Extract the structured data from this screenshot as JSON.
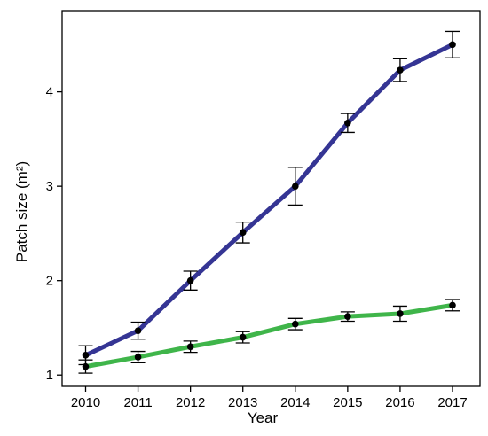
{
  "chart_data": {
    "type": "line",
    "xlabel": "Year",
    "ylabel": "Patch size (m²)",
    "x": [
      "2010",
      "2011",
      "2012",
      "2013",
      "2014",
      "2015",
      "2016",
      "2017"
    ],
    "ylim": [
      0.88,
      4.86
    ],
    "yticks": [
      "1",
      "2",
      "3",
      "4"
    ],
    "grid": false,
    "series": [
      {
        "color": "#353594",
        "values": [
          1.21,
          1.47,
          2.0,
          2.51,
          3.0,
          3.67,
          4.23,
          4.5
        ],
        "error": [
          0.1,
          0.09,
          0.1,
          0.11,
          0.2,
          0.1,
          0.12,
          0.14
        ]
      },
      {
        "color": "#3fb54a",
        "values": [
          1.09,
          1.19,
          1.3,
          1.4,
          1.54,
          1.62,
          1.65,
          1.74
        ],
        "error": [
          0.07,
          0.06,
          0.06,
          0.06,
          0.06,
          0.05,
          0.08,
          0.06
        ]
      }
    ]
  }
}
